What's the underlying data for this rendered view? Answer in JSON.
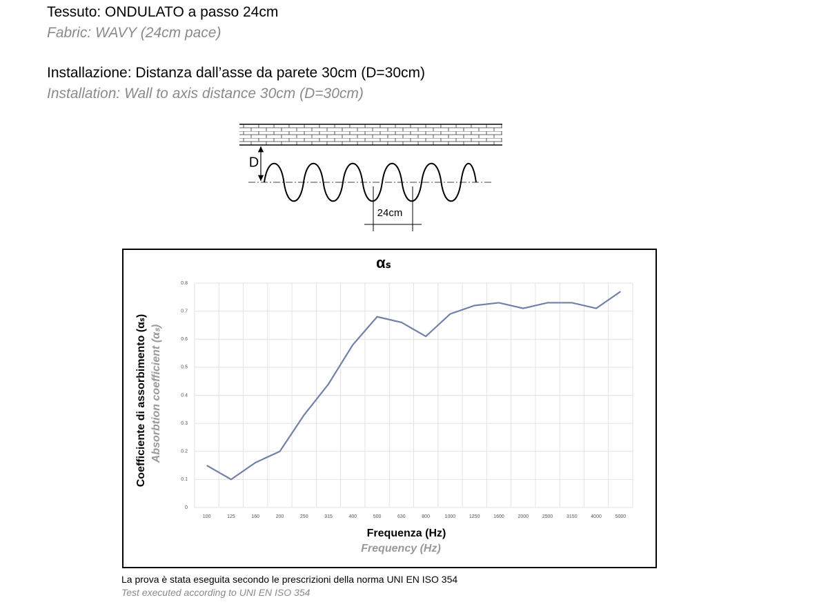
{
  "header": {
    "fabric_it": "Tessuto: ONDULATO a passo 24cm",
    "fabric_en": "Fabric: WAVY (24cm pace)",
    "installation_it": "Installazione: Distanza dall’asse da parete 30cm (D=30cm)",
    "installation_en": "Installation: Wall to axis distance 30cm (D=30cm)"
  },
  "diagram": {
    "distance_label": "D",
    "pitch_label": "24cm"
  },
  "chart_data": {
    "type": "line",
    "title": "αₛ",
    "x_label": "Frequenza (Hz)",
    "x_label_en": "Frequency (Hz)",
    "y_label": "Coefficiente di assorbimento (αₛ)",
    "y_label_en": "Absorbtion coefficient (αₛ)",
    "categories": [
      "100",
      "125",
      "160",
      "200",
      "250",
      "315",
      "400",
      "500",
      "630",
      "800",
      "1000",
      "1250",
      "1600",
      "2000",
      "2500",
      "3150",
      "4000",
      "5000"
    ],
    "values": [
      0.15,
      0.1,
      0.16,
      0.2,
      0.33,
      0.44,
      0.58,
      0.68,
      0.66,
      0.61,
      0.69,
      0.72,
      0.73,
      0.71,
      0.73,
      0.73,
      0.71,
      0.77
    ],
    "color": "#7080a8",
    "ylim": [
      0,
      0.8
    ],
    "yticks": [
      0,
      0.1,
      0.2,
      0.3,
      0.4,
      0.5,
      0.6,
      0.7,
      0.8
    ],
    "grid": true
  },
  "footer": {
    "note_it": "La prova è stata eseguita secondo le prescrizioni della norma UNI EN ISO 354",
    "note_en": "Test executed according  to UNI EN ISO 354"
  }
}
